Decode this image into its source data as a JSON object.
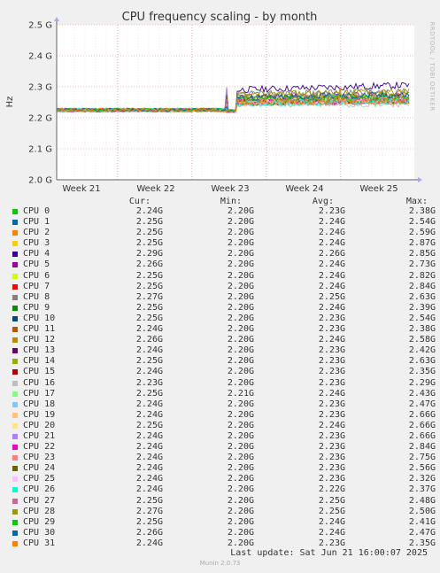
{
  "chart_data": {
    "type": "line",
    "title": "CPU frequency scaling - by month",
    "ylabel": "Hz",
    "yticks": [
      "2.0 G",
      "2.1 G",
      "2.2 G",
      "2.3 G",
      "2.4 G",
      "2.5 G"
    ],
    "ylim": [
      2.0,
      2.5
    ],
    "xticks": [
      "Week 21",
      "Week 22",
      "Week 23",
      "Week 24",
      "Week 25"
    ],
    "grid": true,
    "watermark": "RRDTOOL / TOBI OETIKER",
    "legend_headers": {
      "cur": "Cur:",
      "min": "Min:",
      "avg": "Avg:",
      "max": "Max:"
    },
    "series": [
      {
        "name": "CPU 0",
        "color": "#00cc00",
        "cur": "2.24G",
        "min": "2.20G",
        "avg": "2.23G",
        "max": "2.38G"
      },
      {
        "name": "CPU 1",
        "color": "#0066b3",
        "cur": "2.25G",
        "min": "2.20G",
        "avg": "2.24G",
        "max": "2.54G"
      },
      {
        "name": "CPU 2",
        "color": "#ff8000",
        "cur": "2.25G",
        "min": "2.20G",
        "avg": "2.24G",
        "max": "2.59G"
      },
      {
        "name": "CPU 3",
        "color": "#ffcc00",
        "cur": "2.25G",
        "min": "2.20G",
        "avg": "2.24G",
        "max": "2.87G"
      },
      {
        "name": "CPU 4",
        "color": "#330099",
        "cur": "2.29G",
        "min": "2.20G",
        "avg": "2.26G",
        "max": "2.85G"
      },
      {
        "name": "CPU 5",
        "color": "#990099",
        "cur": "2.26G",
        "min": "2.20G",
        "avg": "2.24G",
        "max": "2.73G"
      },
      {
        "name": "CPU 6",
        "color": "#ccff00",
        "cur": "2.25G",
        "min": "2.20G",
        "avg": "2.24G",
        "max": "2.82G"
      },
      {
        "name": "CPU 7",
        "color": "#ff0000",
        "cur": "2.25G",
        "min": "2.20G",
        "avg": "2.24G",
        "max": "2.84G"
      },
      {
        "name": "CPU 8",
        "color": "#808080",
        "cur": "2.27G",
        "min": "2.20G",
        "avg": "2.25G",
        "max": "2.63G"
      },
      {
        "name": "CPU 9",
        "color": "#008f00",
        "cur": "2.25G",
        "min": "2.20G",
        "avg": "2.24G",
        "max": "2.39G"
      },
      {
        "name": "CPU 10",
        "color": "#00487d",
        "cur": "2.25G",
        "min": "2.20G",
        "avg": "2.23G",
        "max": "2.54G"
      },
      {
        "name": "CPU 11",
        "color": "#b35a00",
        "cur": "2.24G",
        "min": "2.20G",
        "avg": "2.23G",
        "max": "2.38G"
      },
      {
        "name": "CPU 12",
        "color": "#b38f00",
        "cur": "2.26G",
        "min": "2.20G",
        "avg": "2.24G",
        "max": "2.58G"
      },
      {
        "name": "CPU 13",
        "color": "#6b006b",
        "cur": "2.24G",
        "min": "2.20G",
        "avg": "2.23G",
        "max": "2.42G"
      },
      {
        "name": "CPU 14",
        "color": "#8fb300",
        "cur": "2.25G",
        "min": "2.20G",
        "avg": "2.23G",
        "max": "2.63G"
      },
      {
        "name": "CPU 15",
        "color": "#b30000",
        "cur": "2.24G",
        "min": "2.20G",
        "avg": "2.23G",
        "max": "2.35G"
      },
      {
        "name": "CPU 16",
        "color": "#bebebe",
        "cur": "2.23G",
        "min": "2.20G",
        "avg": "2.23G",
        "max": "2.29G"
      },
      {
        "name": "CPU 17",
        "color": "#80ff80",
        "cur": "2.25G",
        "min": "2.21G",
        "avg": "2.24G",
        "max": "2.43G"
      },
      {
        "name": "CPU 18",
        "color": "#80c9ff",
        "cur": "2.24G",
        "min": "2.20G",
        "avg": "2.23G",
        "max": "2.47G"
      },
      {
        "name": "CPU 19",
        "color": "#ffc080",
        "cur": "2.24G",
        "min": "2.20G",
        "avg": "2.23G",
        "max": "2.66G"
      },
      {
        "name": "CPU 20",
        "color": "#ffe680",
        "cur": "2.25G",
        "min": "2.20G",
        "avg": "2.24G",
        "max": "2.66G"
      },
      {
        "name": "CPU 21",
        "color": "#aa80ff",
        "cur": "2.24G",
        "min": "2.20G",
        "avg": "2.23G",
        "max": "2.66G"
      },
      {
        "name": "CPU 22",
        "color": "#ee00cc",
        "cur": "2.24G",
        "min": "2.20G",
        "avg": "2.23G",
        "max": "2.84G"
      },
      {
        "name": "CPU 23",
        "color": "#ff8080",
        "cur": "2.24G",
        "min": "2.20G",
        "avg": "2.23G",
        "max": "2.75G"
      },
      {
        "name": "CPU 24",
        "color": "#666600",
        "cur": "2.24G",
        "min": "2.20G",
        "avg": "2.23G",
        "max": "2.56G"
      },
      {
        "name": "CPU 25",
        "color": "#ffbfff",
        "cur": "2.24G",
        "min": "2.20G",
        "avg": "2.23G",
        "max": "2.32G"
      },
      {
        "name": "CPU 26",
        "color": "#00ffcc",
        "cur": "2.24G",
        "min": "2.20G",
        "avg": "2.22G",
        "max": "2.37G"
      },
      {
        "name": "CPU 27",
        "color": "#cc6699",
        "cur": "2.25G",
        "min": "2.20G",
        "avg": "2.25G",
        "max": "2.48G"
      },
      {
        "name": "CPU 28",
        "color": "#999900",
        "cur": "2.27G",
        "min": "2.20G",
        "avg": "2.25G",
        "max": "2.50G"
      },
      {
        "name": "CPU 29",
        "color": "#00cc00",
        "cur": "2.25G",
        "min": "2.20G",
        "avg": "2.24G",
        "max": "2.41G"
      },
      {
        "name": "CPU 30",
        "color": "#0066b3",
        "cur": "2.26G",
        "min": "2.20G",
        "avg": "2.24G",
        "max": "2.47G"
      },
      {
        "name": "CPU 31",
        "color": "#ff8000",
        "cur": "2.24G",
        "min": "2.20G",
        "avg": "2.23G",
        "max": "2.35G"
      }
    ]
  },
  "footer": {
    "last_update": "Last update: Sat Jun 21 16:00:07 2025",
    "munin_version": "Munin 2.0.73"
  }
}
